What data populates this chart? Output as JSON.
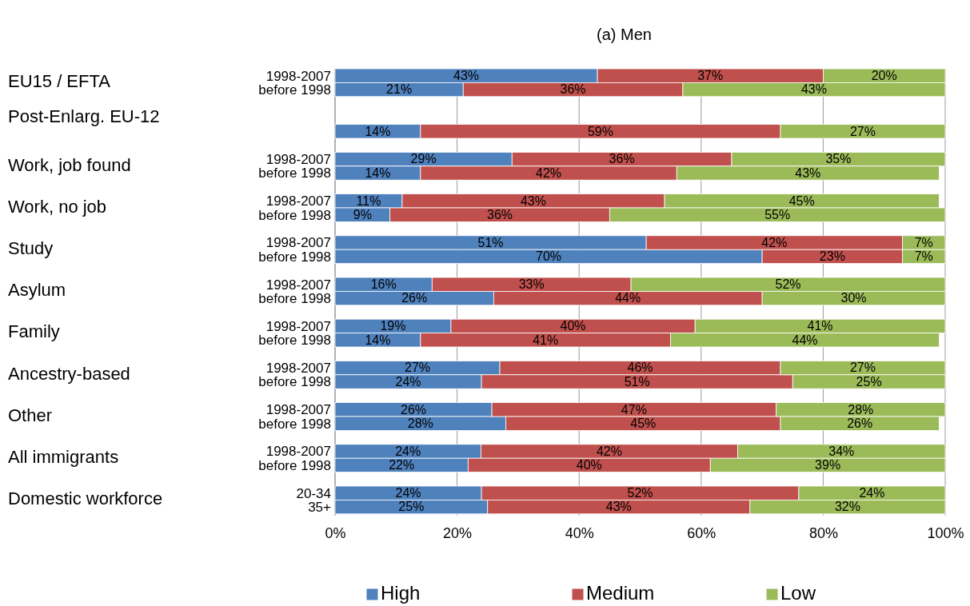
{
  "chart_data": {
    "type": "bar",
    "orientation": "horizontal",
    "stacked": true,
    "title": "(a) Men",
    "categories": [
      "1998-2007",
      "before 1998",
      null,
      null,
      null,
      null,
      "1998-2007",
      "before 1998",
      null,
      "1998-2007",
      "before 1998",
      null,
      "1998-2007",
      "before 1998",
      null,
      "1998-2007",
      "before 1998",
      null,
      "1998-2007",
      "before 1998",
      null,
      "1998-2007",
      "before 1998",
      null,
      "1998-2007",
      "before 1998",
      null,
      "1998-2007",
      "before 1998",
      null,
      "20-34",
      "35+"
    ],
    "annotations": [
      "EU15 / EFTA",
      "Post-Enlarg. EU-12",
      "Work, job found",
      "Work, no job",
      "Study",
      "Asylum",
      "Family",
      "Ancestry-based",
      "Other",
      "All immigrants",
      "Domestic workforce"
    ],
    "series": [
      {
        "name": "High",
        "color": "#4f81bd",
        "values": [
          43,
          21,
          null,
          null,
          14,
          null,
          29,
          14,
          null,
          11,
          9,
          null,
          51,
          70,
          null,
          15.9,
          26,
          null,
          19,
          14,
          null,
          27,
          24,
          null,
          25.7,
          28,
          null,
          23.9,
          21.8,
          null,
          24,
          25
        ],
        "value_labels": [
          "43%",
          "21%",
          null,
          null,
          "14%",
          null,
          "29%",
          "14%",
          null,
          "11%",
          "9%",
          null,
          "51%",
          "70%",
          null,
          "16%",
          "26%",
          null,
          "19%",
          "14%",
          null,
          "27%",
          "24%",
          null,
          "26%",
          "28%",
          null,
          "24%",
          "22%",
          null,
          "24%",
          "25%"
        ]
      },
      {
        "name": "Medium",
        "color": "#c0504d",
        "values": [
          37,
          36,
          null,
          null,
          59,
          null,
          36,
          42,
          null,
          43,
          36,
          null,
          42,
          23,
          null,
          32.6,
          44,
          null,
          40,
          41,
          null,
          46,
          51,
          null,
          46.6,
          45,
          null,
          42.1,
          39.7,
          null,
          52,
          43
        ],
        "value_labels": [
          "37%",
          "36%",
          null,
          null,
          "59%",
          null,
          "36%",
          "42%",
          null,
          "43%",
          "36%",
          null,
          "42%",
          "23%",
          null,
          "33%",
          "44%",
          null,
          "40%",
          "41%",
          null,
          "46%",
          "51%",
          null,
          "47%",
          "45%",
          null,
          "42%",
          "40%",
          null,
          "52%",
          "43%"
        ]
      },
      {
        "name": "Low",
        "color": "#9bbb59",
        "values": [
          20,
          43,
          null,
          null,
          27,
          null,
          35,
          43,
          null,
          45,
          55,
          null,
          7,
          7,
          null,
          51.5,
          30,
          null,
          41,
          44,
          null,
          27,
          25,
          null,
          27.7,
          26,
          null,
          34,
          38.5,
          null,
          24,
          32
        ],
        "value_labels": [
          "20%",
          "43%",
          null,
          null,
          "27%",
          null,
          "35%",
          "43%",
          null,
          "45%",
          "55%",
          null,
          "7%",
          "7%",
          null,
          "52%",
          "30%",
          null,
          "41%",
          "44%",
          null,
          "27%",
          "25%",
          null,
          "28%",
          "26%",
          null,
          "34%",
          "39%",
          null,
          "24%",
          "32%"
        ]
      }
    ],
    "xlim": [
      0,
      100
    ],
    "xticks": [
      {
        "value": 0,
        "label": "0%"
      },
      {
        "value": 20,
        "label": "20%"
      },
      {
        "value": 40,
        "label": "40%"
      },
      {
        "value": 60,
        "label": "60%"
      },
      {
        "value": 80,
        "label": "80%"
      },
      {
        "value": 100,
        "label": "100%"
      }
    ],
    "grid": "x",
    "legend": "bottom"
  }
}
